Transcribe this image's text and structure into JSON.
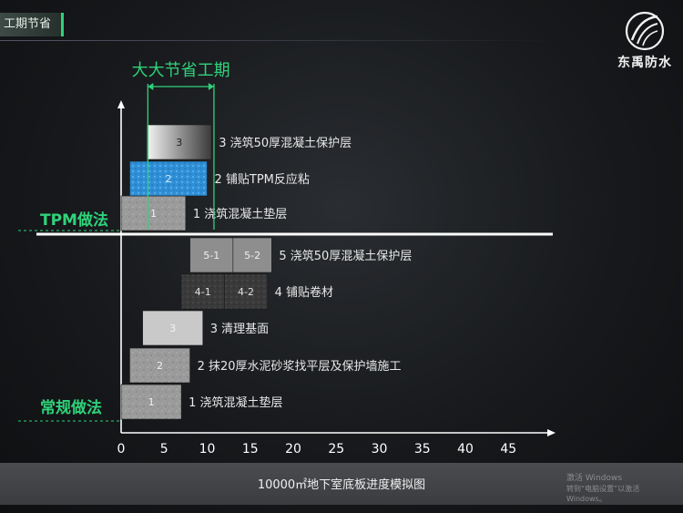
{
  "header": {
    "section_title": "工期节省"
  },
  "brand": {
    "name": "东禹防水"
  },
  "footer": {
    "caption": "10000㎡地下室底板进度模拟图"
  },
  "watermark": {
    "title": "激活 Windows",
    "subtitle": "转到“电脑设置”以激活 Windows。"
  },
  "colors": {
    "accent": "#2fd27a",
    "tpm_blue": "#2f8fd6"
  },
  "chart_data": {
    "type": "bar",
    "orientation": "horizontal-gantt",
    "xlabel": "",
    "ylabel": "",
    "xlim": [
      0,
      50
    ],
    "xticks": [
      0,
      5,
      10,
      15,
      20,
      25,
      30,
      35,
      40,
      45
    ],
    "grid": false,
    "groups": [
      {
        "name": "TPM做法",
        "tasks": [
          {
            "label": "1 浇筑混凝土垫层",
            "segments": [
              {
                "text": "1",
                "start": 0,
                "end": 7.5,
                "style": "concrete"
              }
            ]
          },
          {
            "label": "2 铺贴TPM反应粘",
            "segments": [
              {
                "text": "2",
                "start": 1,
                "end": 10,
                "style": "tpm"
              }
            ]
          },
          {
            "label": "3 浇筑50厚混凝土保护层",
            "segments": [
              {
                "text": "3",
                "start": 3,
                "end": 10.5,
                "style": "gradient"
              }
            ]
          }
        ]
      },
      {
        "name": "常规做法",
        "tasks": [
          {
            "label": "1 浇筑混凝土垫层",
            "segments": [
              {
                "text": "1",
                "start": 0,
                "end": 7,
                "style": "concrete"
              }
            ]
          },
          {
            "label": "2 抹20厚水泥砂浆找平层及保护墙施工",
            "segments": [
              {
                "text": "2",
                "start": 1,
                "end": 8,
                "style": "concrete"
              }
            ]
          },
          {
            "label": "3 清理基面",
            "segments": [
              {
                "text": "3",
                "start": 2.5,
                "end": 9.5,
                "style": "light"
              }
            ]
          },
          {
            "label": "4 铺贴卷材",
            "segments": [
              {
                "text": "4-1",
                "start": 7,
                "end": 12,
                "style": "dark"
              },
              {
                "text": "4-2",
                "start": 12,
                "end": 17,
                "style": "dark"
              }
            ]
          },
          {
            "label": "5 浇筑50厚混凝土保护层",
            "segments": [
              {
                "text": "5-1",
                "start": 8,
                "end": 13,
                "style": "gray"
              },
              {
                "text": "5-2",
                "start": 13,
                "end": 17.5,
                "style": "gray"
              }
            ]
          }
        ]
      }
    ],
    "annotations": [
      {
        "text": "大大节省工期",
        "from": 3,
        "to": 11
      }
    ]
  }
}
